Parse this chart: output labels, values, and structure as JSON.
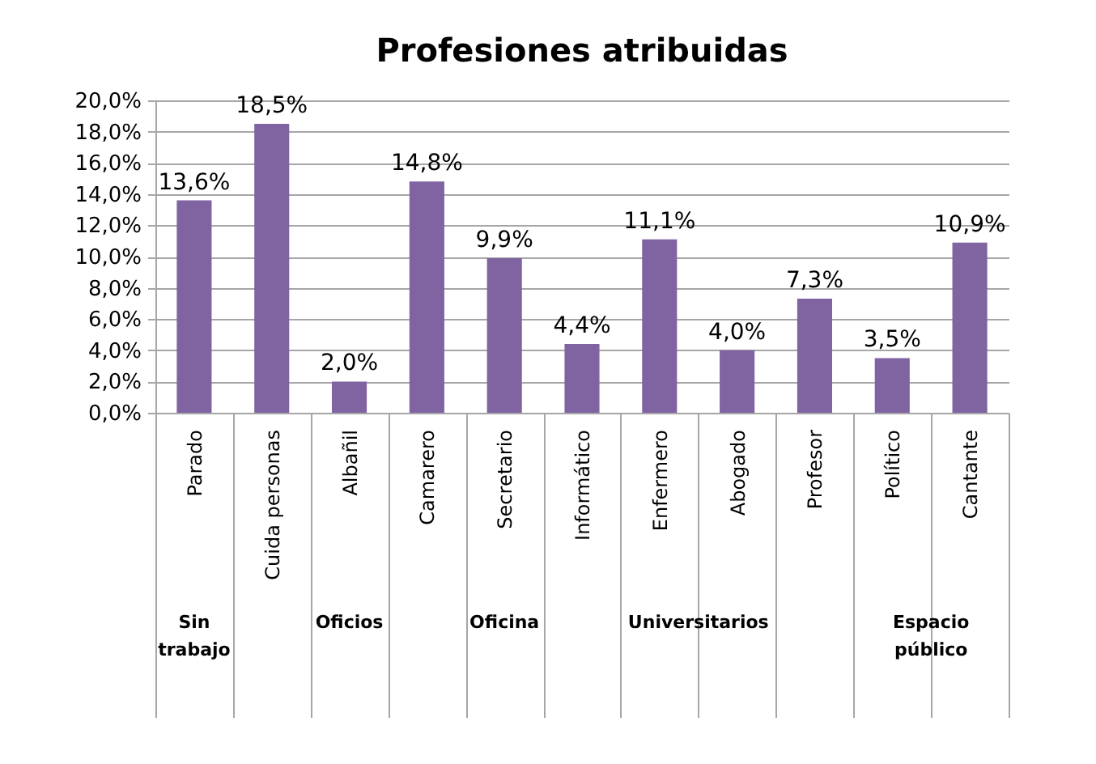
{
  "chart_data": {
    "type": "bar",
    "title": "Profesiones atribuidas",
    "categories": [
      "Parado",
      "Cuida personas",
      "Albañil",
      "Camarero",
      "Secretario",
      "Informático",
      "Enfermero",
      "Abogado",
      "Profesor",
      "Político",
      "Cantante"
    ],
    "values": [
      13.6,
      18.5,
      2.0,
      14.8,
      9.9,
      4.4,
      11.1,
      4.0,
      7.3,
      3.5,
      10.9
    ],
    "value_labels": [
      "13,6%",
      "18,5%",
      "2,0%",
      "14,8%",
      "9,9%",
      "4,4%",
      "11,1%",
      "4,0%",
      "7,3%",
      "3,5%",
      "10,9%"
    ],
    "color": "#8064a2",
    "ylim": [
      0,
      20
    ],
    "yticks": [
      {
        "value": 0,
        "label": "0,0%"
      },
      {
        "value": 2,
        "label": "2,0%"
      },
      {
        "value": 4,
        "label": "4,0%"
      },
      {
        "value": 6,
        "label": "6,0%"
      },
      {
        "value": 8,
        "label": "8,0%"
      },
      {
        "value": 10,
        "label": "10,0%"
      },
      {
        "value": 12,
        "label": "12,0%"
      },
      {
        "value": 14,
        "label": "14,0%"
      },
      {
        "value": 16,
        "label": "16,0%"
      },
      {
        "value": 18,
        "label": "18,0%"
      },
      {
        "value": 20,
        "label": "20,0%"
      }
    ],
    "grid": "y",
    "annotations": [
      "Sin trabajo",
      "Oficios",
      "Oficina",
      "Universitarios",
      "Espacio público"
    ]
  }
}
